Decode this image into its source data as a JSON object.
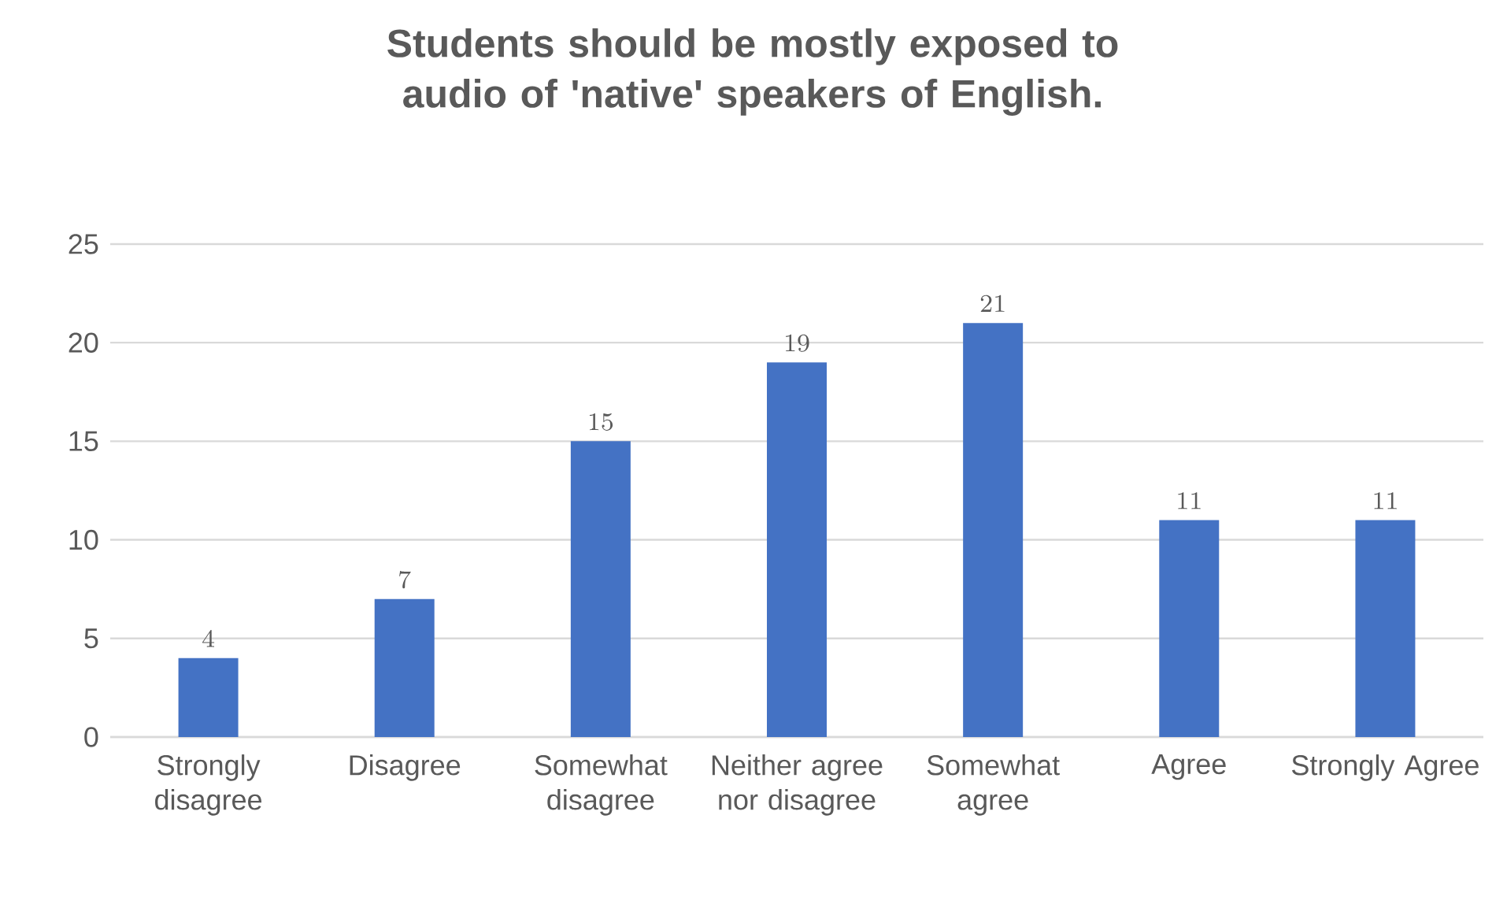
{
  "chart_data": {
    "type": "bar",
    "title": "Students should be mostly exposed to audio of 'native' speakers of English.",
    "categories": [
      "Strongly disagree",
      "Disagree",
      "Somewhat disagree",
      "Neither agree nor disagree",
      "Somewhat agree",
      "Agree",
      "Strongly Agree"
    ],
    "values": [
      4,
      7,
      15,
      19,
      21,
      11,
      11
    ],
    "color": "#4472c4",
    "ylim": [
      0,
      25
    ],
    "yticks": [
      0,
      5,
      10,
      15,
      20,
      25
    ],
    "grid": "y",
    "data_labels": true
  }
}
